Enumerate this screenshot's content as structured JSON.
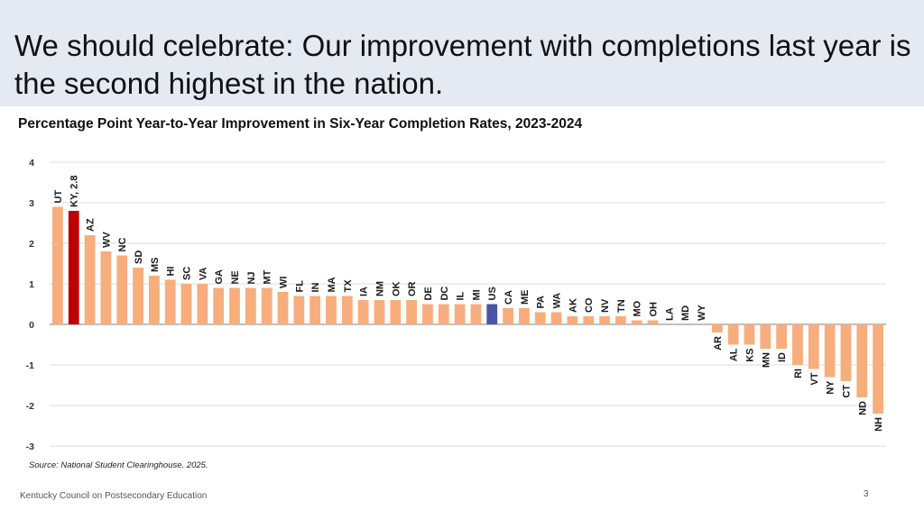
{
  "slide": {
    "title": "We should celebrate: Our improvement with completions last year is the second highest in the nation.",
    "source": "Source: National Student Clearinghouse. 2025.",
    "footer": "Kentucky Council on Postsecondary Education",
    "page_number": "3"
  },
  "colors": {
    "default_bar": "#f7ae7c",
    "highlight_bar": "#c00000",
    "us_bar": "#4a55a5",
    "header_band": "#e4e9f2"
  },
  "chart_data": {
    "type": "bar",
    "title": "Percentage Point Year-to-Year Improvement in Six-Year Completion Rates, 2023-2024",
    "xlabel": "",
    "ylabel": "",
    "ylim": [
      -3,
      4
    ],
    "yticks": [
      "4",
      "3",
      "2",
      "1",
      "0",
      "-1",
      "-2",
      "-3"
    ],
    "grid": true,
    "categories": [
      "UT",
      "KY, 2.8",
      "AZ",
      "WV",
      "NC",
      "SD",
      "MS",
      "HI",
      "SC",
      "VA",
      "GA",
      "NE",
      "NJ",
      "MT",
      "WI",
      "FL",
      "IN",
      "MA",
      "TX",
      "IA",
      "NM",
      "OK",
      "OR",
      "DE",
      "DC",
      "IL",
      "MI",
      "US",
      "CA",
      "ME",
      "PA",
      "WA",
      "AK",
      "CO",
      "NV",
      "TN",
      "MO",
      "OH",
      "LA",
      "MD",
      "WY",
      "AR",
      "AL",
      "KS",
      "MN",
      "ID",
      "RI",
      "VT",
      "NY",
      "CT",
      "ND",
      "NH"
    ],
    "values": [
      2.9,
      2.8,
      2.2,
      1.8,
      1.7,
      1.4,
      1.2,
      1.1,
      1.0,
      1.0,
      0.9,
      0.9,
      0.9,
      0.9,
      0.8,
      0.7,
      0.7,
      0.7,
      0.7,
      0.6,
      0.6,
      0.6,
      0.6,
      0.5,
      0.5,
      0.5,
      0.5,
      0.5,
      0.4,
      0.4,
      0.3,
      0.3,
      0.2,
      0.2,
      0.2,
      0.2,
      0.1,
      0.1,
      0.0,
      0.0,
      0.0,
      -0.2,
      -0.5,
      -0.5,
      -0.6,
      -0.6,
      -1.0,
      -1.1,
      -1.3,
      -1.4,
      -1.8,
      -2.2
    ],
    "highlight": {
      "KY, 2.8": "highlight",
      "US": "us"
    }
  }
}
